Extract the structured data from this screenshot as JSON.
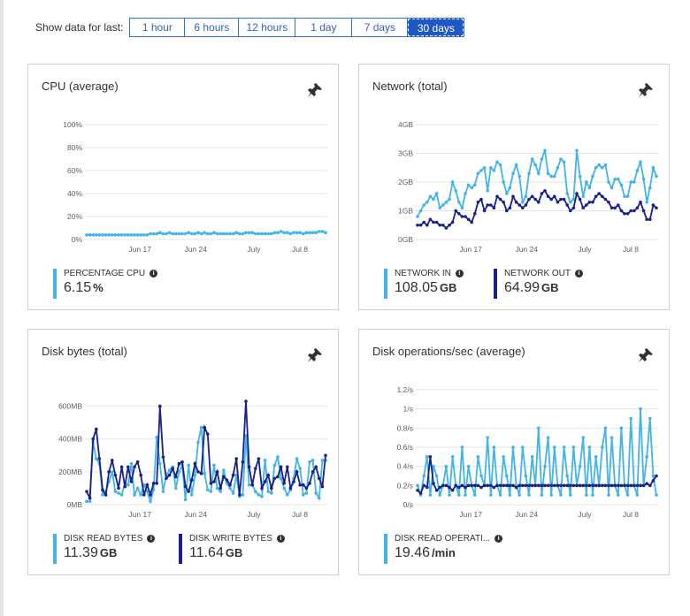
{
  "time_range": {
    "label": "Show data for last:",
    "options": [
      "1 hour",
      "6 hours",
      "12 hours",
      "1 day",
      "7 days",
      "30 days"
    ],
    "selected": "30 days"
  },
  "colors": {
    "light_blue": "#41b4ea",
    "dark_blue": "#18208a",
    "accent": "#1f57c3"
  },
  "cards": [
    {
      "title": "CPU (average)",
      "metrics": [
        {
          "label": "PERCENTAGE CPU",
          "value": "6.15",
          "unit": "%"
        }
      ]
    },
    {
      "title": "Network (total)",
      "metrics": [
        {
          "label": "NETWORK IN",
          "value": "108.05",
          "unit": "GB"
        },
        {
          "label": "NETWORK OUT",
          "value": "64.99",
          "unit": "GB"
        }
      ]
    },
    {
      "title": "Disk bytes (total)",
      "metrics": [
        {
          "label": "DISK READ BYTES",
          "value": "11.39",
          "unit": "GB"
        },
        {
          "label": "DISK WRITE BYTES",
          "value": "11.64",
          "unit": "GB"
        }
      ]
    },
    {
      "title": "Disk operations/sec (average)",
      "metrics": [
        {
          "label": "DISK READ OPERATI...",
          "value": "19.46",
          "unit": "/min"
        }
      ]
    }
  ],
  "chart_data": [
    {
      "type": "line",
      "title": "CPU (average)",
      "x_ticks": [
        "Jun 17",
        "Jun 24",
        "July",
        "Jul 8"
      ],
      "y_ticks": [
        "0%",
        "20%",
        "40%",
        "60%",
        "80%",
        "100%"
      ],
      "ylim": [
        0,
        100
      ],
      "grid": true,
      "series": [
        {
          "name": "PERCENTAGE CPU",
          "color": "#41b4ea",
          "values": [
            4,
            4,
            4,
            4,
            4,
            4,
            4,
            4,
            4,
            4,
            4,
            4,
            4,
            4,
            4,
            4,
            4,
            4,
            4,
            4,
            5,
            5,
            5,
            6,
            5,
            5,
            6,
            5,
            5,
            5,
            5,
            5,
            6,
            5,
            5,
            6,
            5,
            6,
            5,
            5,
            6,
            5,
            5,
            5,
            5,
            5,
            5,
            6,
            5,
            5,
            6,
            6,
            6,
            5,
            5,
            5,
            5,
            5,
            5,
            6,
            6,
            7,
            6,
            6,
            5,
            6,
            6,
            6,
            5,
            6,
            6,
            6,
            6,
            7,
            7,
            6
          ]
        }
      ]
    },
    {
      "type": "line",
      "title": "Network (total)",
      "x_ticks": [
        "Jun 17",
        "Jun 24",
        "July",
        "Jul 8"
      ],
      "y_ticks": [
        "0GB",
        "1GB",
        "2GB",
        "3GB",
        "4GB"
      ],
      "ylim": [
        0,
        4
      ],
      "grid": true,
      "series": [
        {
          "name": "NETWORK IN",
          "color": "#41b4ea",
          "values": [
            0.8,
            1.0,
            1.2,
            1.3,
            1.5,
            1.4,
            1.6,
            1.1,
            1.2,
            1.3,
            1.4,
            2.0,
            1.7,
            1.3,
            1.1,
            1.6,
            1.9,
            1.8,
            1.9,
            2.3,
            2.4,
            2.5,
            1.7,
            2.5,
            2.4,
            2.7,
            2.6,
            2.0,
            1.6,
            1.8,
            2.3,
            2.6,
            2.2,
            1.3,
            1.5,
            2.3,
            2.8,
            2.6,
            2.3,
            2.8,
            3.1,
            2.3,
            2.2,
            2.2,
            2.5,
            2.8,
            2.7,
            1.6,
            1.3,
            1.4,
            3.1,
            2.2,
            1.5,
            2.0,
            1.8,
            2.2,
            2.5,
            2.6,
            2.5,
            2.6,
            2.0,
            1.8,
            2.1,
            2.1,
            1.9,
            1.5,
            1.5,
            2.0,
            2.0,
            2.4,
            2.7,
            2.1,
            1.3,
            1.8,
            2.5,
            2.2
          ]
        },
        {
          "name": "NETWORK OUT",
          "color": "#18208a",
          "values": [
            0.5,
            0.5,
            0.6,
            0.5,
            0.7,
            0.6,
            0.6,
            0.5,
            0.5,
            0.4,
            0.5,
            0.6,
            1.0,
            0.9,
            0.8,
            0.8,
            0.7,
            0.6,
            0.9,
            1.3,
            1.4,
            1.0,
            1.2,
            1.2,
            1.1,
            1.5,
            1.4,
            1.3,
            1.0,
            1.1,
            1.5,
            1.3,
            1.2,
            1.1,
            1.2,
            1.4,
            1.5,
            1.4,
            1.3,
            1.6,
            1.7,
            1.5,
            1.4,
            1.5,
            1.3,
            1.4,
            1.4,
            1.2,
            1.0,
            1.1,
            1.6,
            1.4,
            1.1,
            1.2,
            1.3,
            1.3,
            1.5,
            1.6,
            1.5,
            1.4,
            1.3,
            1.1,
            1.1,
            1.2,
            1.0,
            0.9,
            0.9,
            1.0,
            1.0,
            1.1,
            1.3,
            1.0,
            0.7,
            0.7,
            1.2,
            1.1
          ]
        }
      ]
    },
    {
      "type": "line",
      "title": "Disk bytes (total)",
      "x_ticks": [
        "Jun 17",
        "Jun 24",
        "July",
        "Jul 8"
      ],
      "y_ticks": [
        "0MB",
        "200MB",
        "400MB",
        "600MB"
      ],
      "ylim": [
        0,
        700
      ],
      "grid": true,
      "series": [
        {
          "name": "DISK READ BYTES",
          "color": "#41b4ea",
          "values": [
            20,
            20,
            380,
            280,
            250,
            60,
            80,
            140,
            200,
            80,
            70,
            60,
            130,
            120,
            250,
            60,
            100,
            60,
            120,
            80,
            20,
            90,
            410,
            250,
            80,
            180,
            210,
            230,
            100,
            200,
            240,
            30,
            240,
            60,
            180,
            380,
            470,
            190,
            90,
            80,
            240,
            100,
            80,
            210,
            130,
            100,
            70,
            180,
            50,
            60,
            420,
            120,
            120,
            80,
            60,
            50,
            270,
            80,
            70,
            240,
            290,
            160,
            100,
            60,
            90,
            160,
            280,
            220,
            60,
            70,
            260,
            270,
            70,
            40,
            270,
            270
          ]
        },
        {
          "name": "DISK WRITE BYTES",
          "color": "#18208a",
          "values": [
            80,
            40,
            400,
            460,
            280,
            90,
            60,
            200,
            270,
            180,
            100,
            230,
            110,
            230,
            140,
            230,
            260,
            180,
            60,
            120,
            60,
            130,
            130,
            600,
            290,
            160,
            180,
            220,
            170,
            250,
            260,
            110,
            80,
            150,
            250,
            200,
            190,
            470,
            430,
            130,
            140,
            200,
            100,
            170,
            150,
            120,
            180,
            280,
            60,
            260,
            630,
            230,
            120,
            220,
            280,
            100,
            140,
            180,
            100,
            160,
            170,
            230,
            130,
            230,
            100,
            140,
            200,
            120,
            120,
            100,
            130,
            200,
            230,
            160,
            110,
            300
          ]
        }
      ]
    },
    {
      "type": "line",
      "title": "Disk operations/sec (average)",
      "x_ticks": [
        "Jun 17",
        "Jun 24",
        "July",
        "Jul 8"
      ],
      "y_ticks": [
        "0/s",
        "0.2/s",
        "0.4/s",
        "0.6/s",
        "0.8/s",
        "1/s",
        "1.2/s"
      ],
      "ylim": [
        0,
        1.2
      ],
      "grid": true,
      "series": [
        {
          "name": "DISK READ OPERATI...",
          "color": "#41b4ea",
          "values": [
            0.2,
            0.1,
            0.3,
            0.5,
            0.1,
            0.4,
            0.3,
            0.1,
            0.2,
            0.4,
            0.1,
            0.5,
            0.2,
            0.1,
            0.6,
            0.1,
            0.4,
            0.2,
            0.1,
            0.5,
            0.3,
            0.2,
            0.7,
            0.1,
            0.6,
            0.2,
            0.1,
            0.5,
            0.3,
            0.1,
            0.6,
            0.2,
            0.1,
            0.6,
            0.3,
            0.1,
            0.5,
            0.2,
            0.8,
            0.1,
            0.4,
            0.7,
            0.1,
            0.6,
            0.2,
            0.1,
            0.6,
            0.3,
            0.1,
            0.6,
            0.2,
            0.4,
            0.7,
            0.1,
            0.6,
            0.1,
            0.5,
            0.2,
            0.6,
            0.8,
            0.1,
            0.7,
            0.2,
            0.1,
            0.8,
            0.2,
            0.1,
            0.9,
            0.2,
            0.1,
            1.0,
            0.2,
            0.5,
            0.9,
            0.3,
            0.1
          ]
        },
        {
          "color": "#18208a",
          "values": [
            0.15,
            0.12,
            0.2,
            0.18,
            0.5,
            0.22,
            0.15,
            0.18,
            0.2,
            0.2,
            0.18,
            0.15,
            0.2,
            0.18,
            0.2,
            0.18,
            0.2,
            0.2,
            0.2,
            0.2,
            0.18,
            0.2,
            0.2,
            0.2,
            0.18,
            0.2,
            0.2,
            0.2,
            0.2,
            0.2,
            0.2,
            0.18,
            0.2,
            0.2,
            0.2,
            0.2,
            0.2,
            0.2,
            0.2,
            0.2,
            0.2,
            0.2,
            0.2,
            0.2,
            0.2,
            0.2,
            0.2,
            0.2,
            0.2,
            0.2,
            0.2,
            0.2,
            0.2,
            0.2,
            0.2,
            0.2,
            0.2,
            0.2,
            0.2,
            0.2,
            0.2,
            0.2,
            0.2,
            0.2,
            0.2,
            0.2,
            0.2,
            0.2,
            0.2,
            0.2,
            0.2,
            0.2,
            0.22,
            0.2,
            0.25,
            0.3
          ]
        }
      ]
    }
  ]
}
